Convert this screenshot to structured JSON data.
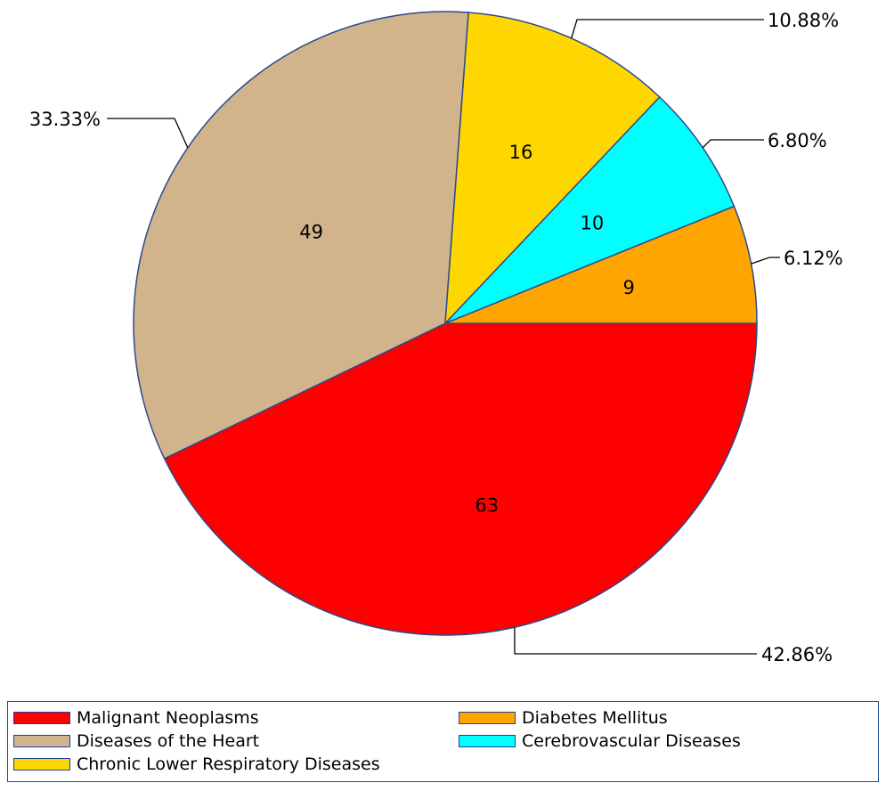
{
  "chart_data": {
    "type": "pie",
    "title": "",
    "slices": [
      {
        "label": "Malignant Neoplasms",
        "value": 63,
        "percent_label": "42.86%",
        "color": "#ff0000"
      },
      {
        "label": "Diseases of the Heart",
        "value": 49,
        "percent_label": "33.33%",
        "color": "#d2b48c"
      },
      {
        "label": "Chronic Lower Respiratory Diseases",
        "value": 16,
        "percent_label": "10.88%",
        "color": "#ffd700"
      },
      {
        "label": "Cerebrovascular Diseases",
        "value": 10,
        "percent_label": "6.80%",
        "color": "#00ffff"
      },
      {
        "label": "Diabetes Mellitus",
        "value": 9,
        "percent_label": "6.12%",
        "color": "#ffa500"
      }
    ],
    "start_angle_deg": 0,
    "direction": "clockwise",
    "legend_position": "bottom",
    "legend_items": [
      "Malignant Neoplasms",
      "Diseases of the Heart",
      "Chronic Lower Respiratory Diseases",
      "Diabetes Mellitus",
      "Cerebrovascular Diseases"
    ]
  },
  "colors": {
    "slice_border": "#2b4a8b",
    "legend_border": "#1f4e9c",
    "leader_line": "#000000"
  }
}
